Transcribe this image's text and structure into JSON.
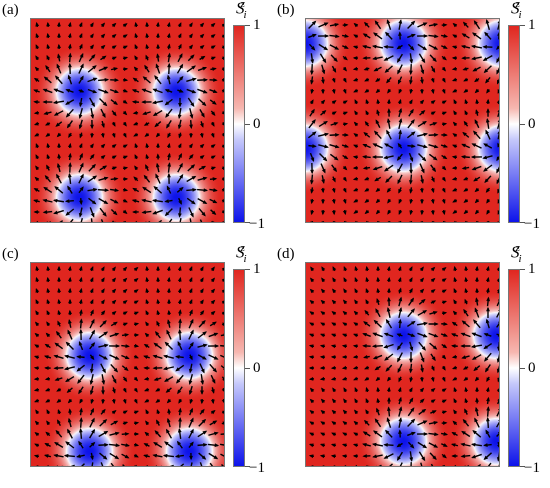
{
  "panels": [
    {
      "label": "(a)",
      "layout": "checker-a"
    },
    {
      "label": "(b)",
      "layout": "checker-b"
    },
    {
      "label": "(c)",
      "layout": "checker-c"
    },
    {
      "label": "(d)",
      "layout": "checker-d"
    }
  ],
  "colorbar": {
    "symbol": "S",
    "subscript": "i",
    "superscript": "z",
    "ticks": [
      "1",
      "0",
      "−1"
    ],
    "color_top": "#e0261f",
    "color_mid": "#ffffff",
    "color_bottom": "#0d13ea"
  },
  "arrow_color": "#000000"
}
